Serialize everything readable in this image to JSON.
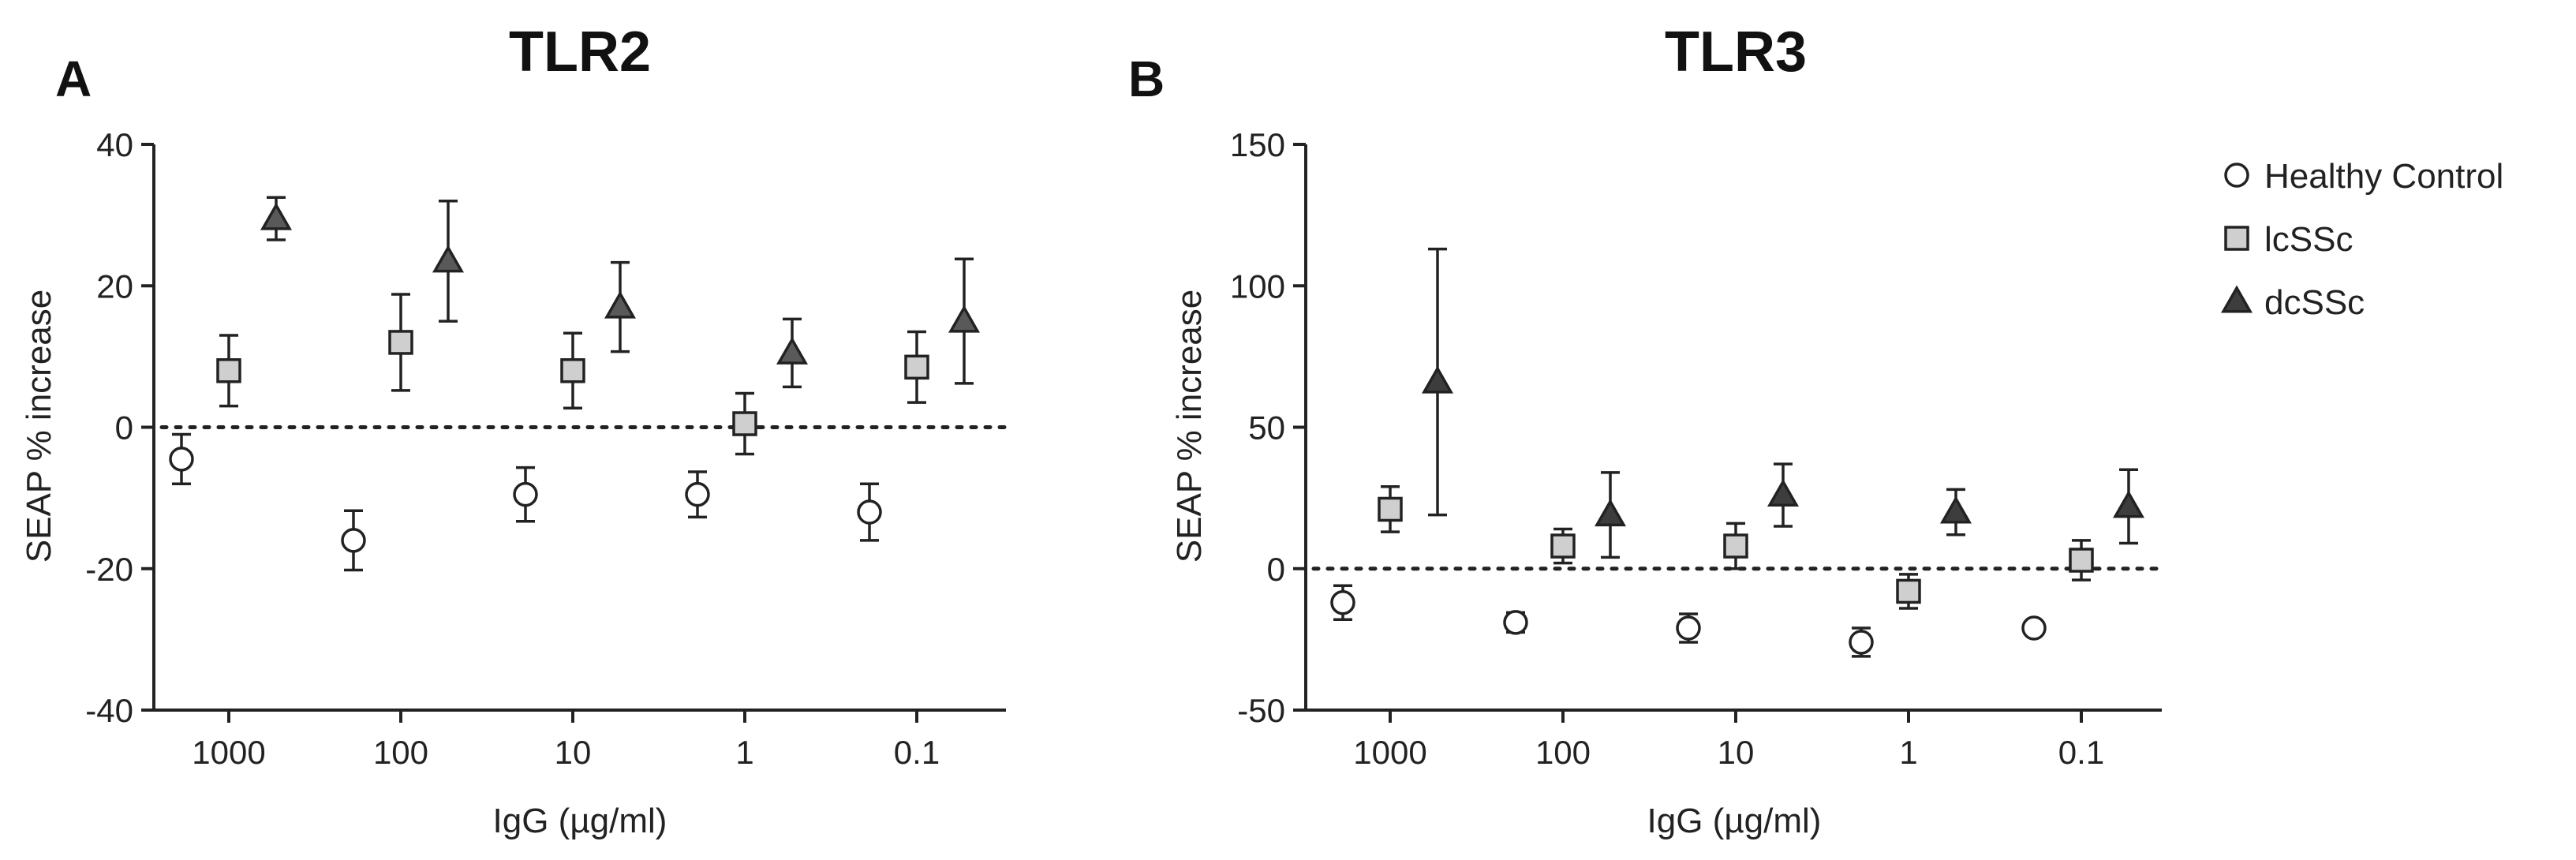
{
  "chart_data": [
    {
      "type": "scatter",
      "panel": "A",
      "title": "TLR2",
      "xlabel": "IgG (µg/ml)",
      "ylabel": "SEAP % increase",
      "ylim": [
        -40,
        40
      ],
      "yticks": [
        -40,
        -20,
        0,
        20,
        40
      ],
      "categories": [
        "1000",
        "100",
        "10",
        "1",
        "0.1"
      ],
      "reference_line": 0,
      "series": [
        {
          "name": "Healthy Control",
          "marker": "circle",
          "color": "#ffffff",
          "values": [
            -4.5,
            -16,
            -9.5,
            -9.5,
            -12
          ],
          "errors": [
            3.5,
            4.2,
            3.8,
            3.2,
            4.0
          ]
        },
        {
          "name": "lcSSc",
          "marker": "square",
          "color": "#cfcfcf",
          "values": [
            8,
            12,
            8,
            0.5,
            8.5
          ],
          "errors": [
            5,
            6.8,
            5.3,
            4.3,
            5
          ]
        },
        {
          "name": "dcSSc",
          "marker": "triangle",
          "color": "#595959",
          "values": [
            29.5,
            23.5,
            17,
            10.5,
            15
          ],
          "errors": [
            3,
            8.5,
            6.3,
            4.8,
            8.8
          ]
        }
      ]
    },
    {
      "type": "scatter",
      "panel": "B",
      "title": "TLR3",
      "xlabel": "IgG (µg/ml)",
      "ylabel": "SEAP % increase",
      "ylim": [
        -50,
        150
      ],
      "yticks": [
        -50,
        0,
        50,
        100,
        150
      ],
      "categories": [
        "1000",
        "100",
        "10",
        "1",
        "0.1"
      ],
      "reference_line": 0,
      "series": [
        {
          "name": "Healthy Control",
          "marker": "circle",
          "color": "#ffffff",
          "values": [
            -12,
            -19,
            -21,
            -26,
            -21
          ],
          "errors": [
            6,
            3.5,
            5,
            5,
            0
          ]
        },
        {
          "name": "lcSSc",
          "marker": "square",
          "color": "#cfcfcf",
          "values": [
            21,
            8,
            8,
            -8,
            3
          ],
          "errors": [
            8,
            6,
            8,
            6,
            7
          ]
        },
        {
          "name": "dcSSc",
          "marker": "triangle",
          "color": "#3d3d3d",
          "values": [
            66,
            19,
            26,
            20,
            22
          ],
          "errors": [
            47,
            15,
            11,
            8,
            13
          ]
        }
      ]
    }
  ],
  "legend": {
    "items": [
      {
        "label": "Healthy Control",
        "marker": "circle",
        "color": "#ffffff"
      },
      {
        "label": "lcSSc",
        "marker": "square",
        "color": "#cfcfcf"
      },
      {
        "label": "dcSSc",
        "marker": "triangle",
        "color": "#3d3d3d"
      }
    ]
  }
}
